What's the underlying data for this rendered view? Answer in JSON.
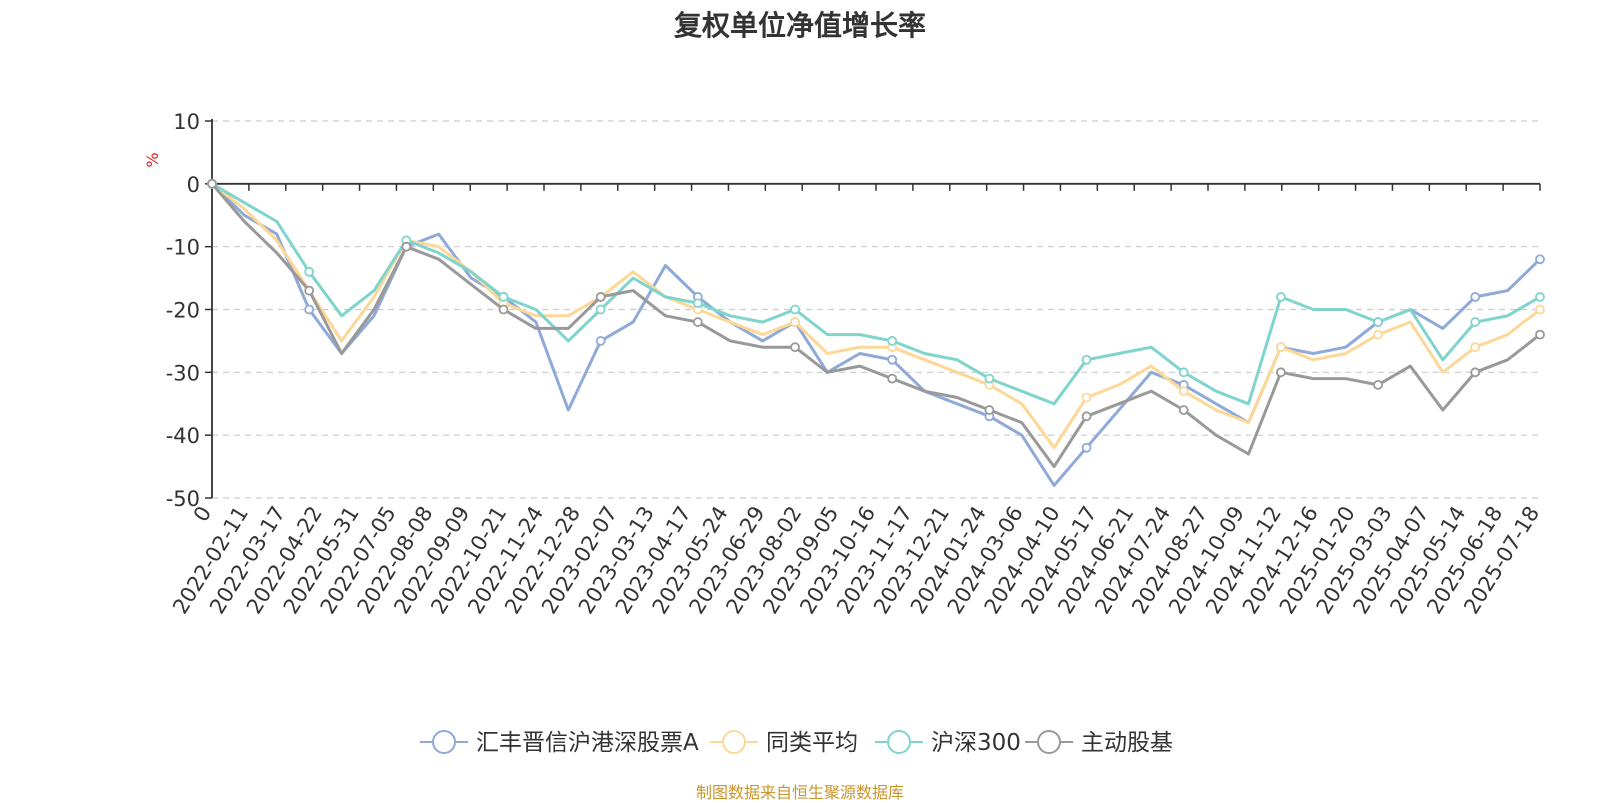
{
  "footer": {
    "source": "制图数据来自恒生聚源数据库"
  },
  "chart_data": {
    "type": "line",
    "title": "复权单位净值增长率",
    "ylabel": "%",
    "xlabel": "",
    "ylim": [
      -50,
      10
    ],
    "y_ticks": [
      10,
      0,
      -10,
      -20,
      -30,
      -40,
      -50
    ],
    "x_tick_labels": [
      "0",
      "2022-02-11",
      "2022-03-17",
      "2022-04-22",
      "2022-05-31",
      "2022-07-05",
      "2022-08-08",
      "2022-09-09",
      "2022-10-21",
      "2022-11-24",
      "2022-12-28",
      "2023-02-07",
      "2023-03-13",
      "2023-04-17",
      "2023-05-24",
      "2023-06-29",
      "2023-08-02",
      "2023-09-05",
      "2023-10-16",
      "2023-11-17",
      "2023-12-21",
      "2024-01-24",
      "2024-03-06",
      "2024-04-10",
      "2024-05-17",
      "2024-06-21",
      "2024-07-24",
      "2024-08-27",
      "2024-10-09",
      "2024-11-12",
      "2024-12-16",
      "2025-01-20",
      "2025-03-03",
      "2025-04-07",
      "2025-05-14",
      "2025-06-18",
      "2025-07-18"
    ],
    "grid": "horizontal-dashed",
    "legend_position": "bottom-center",
    "series": [
      {
        "name": "汇丰晋信沪港深股票A",
        "color": "#8fa9d8",
        "values": [
          0,
          -5,
          -8,
          -20,
          -27,
          -21,
          -10,
          -8,
          -15,
          -18,
          -22,
          -36,
          -25,
          -22,
          -13,
          -18,
          -22,
          -25,
          -22,
          -30,
          -27,
          -28,
          -33,
          -35,
          -37,
          -40,
          -48,
          -42,
          -36,
          -30,
          -32,
          -35,
          -38,
          -26,
          -27,
          -26,
          -22,
          -20,
          -23,
          -18,
          -17,
          -12
        ]
      },
      {
        "name": "同类平均",
        "color": "#fdd796",
        "values": [
          0,
          -4,
          -9,
          -17,
          -25,
          -18,
          -9,
          -10,
          -14,
          -19,
          -21,
          -21,
          -18,
          -14,
          -18,
          -20,
          -22,
          -24,
          -22,
          -27,
          -26,
          -26,
          -28,
          -30,
          -32,
          -35,
          -42,
          -34,
          -32,
          -29,
          -33,
          -36,
          -38,
          -26,
          -28,
          -27,
          -24,
          -22,
          -30,
          -26,
          -24,
          -20
        ]
      },
      {
        "name": "沪深300",
        "color": "#7fd4cc",
        "values": [
          0,
          -3,
          -6,
          -14,
          -21,
          -17,
          -9,
          -11,
          -14,
          -18,
          -20,
          -25,
          -20,
          -15,
          -18,
          -19,
          -21,
          -22,
          -20,
          -24,
          -24,
          -25,
          -27,
          -28,
          -31,
          -33,
          -35,
          -28,
          -27,
          -26,
          -30,
          -33,
          -35,
          -18,
          -20,
          -20,
          -22,
          -20,
          -28,
          -22,
          -21,
          -18
        ]
      },
      {
        "name": "主动股基",
        "color": "#999999",
        "values": [
          0,
          -6,
          -11,
          -17,
          -27,
          -20,
          -10,
          -12,
          -16,
          -20,
          -23,
          -23,
          -18,
          -17,
          -21,
          -22,
          -25,
          -26,
          -26,
          -30,
          -29,
          -31,
          -33,
          -34,
          -36,
          -38,
          -45,
          -37,
          -35,
          -33,
          -36,
          -40,
          -43,
          -30,
          -31,
          -31,
          -32,
          -29,
          -36,
          -30,
          -28,
          -24
        ]
      }
    ]
  }
}
